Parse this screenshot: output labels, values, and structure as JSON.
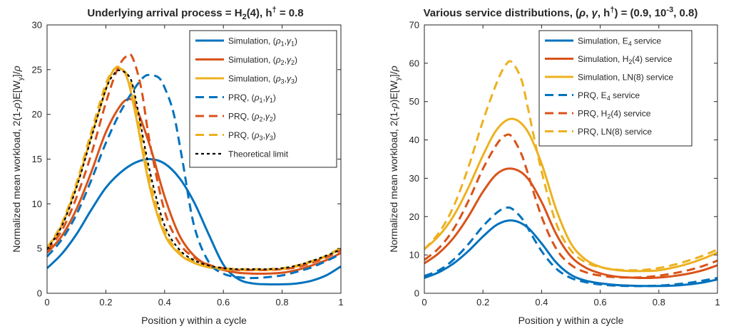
{
  "chart_data": [
    {
      "type": "line",
      "title": "Underlying arrival process = H2(4), h† = 0.8",
      "title_parts": {
        "a": "Underlying arrival process = H",
        "b": "2",
        "c": "(4), h",
        "d": "†",
        "e": " = 0.8"
      },
      "xlabel": "Position y within a cycle",
      "ylabel": "Normalized mean workload, 2(1-ρ)E[W_y]/ρ",
      "ylabel_parts": {
        "a": "Normalized mean workload, 2(1-",
        "b": "ρ",
        "c": ")E[W",
        "d": "y",
        "e": "]/",
        "f": "ρ"
      },
      "xlim": [
        0,
        1
      ],
      "ylim": [
        0,
        30
      ],
      "xticks": [
        0,
        0.2,
        0.4,
        0.6,
        0.8,
        1
      ],
      "xtick_labels": [
        "0",
        "0.2",
        "0.4",
        "0.6",
        "0.8",
        "1"
      ],
      "yticks": [
        0,
        5,
        10,
        15,
        20,
        25,
        30
      ],
      "ytick_labels": [
        "0",
        "5",
        "10",
        "15",
        "20",
        "25",
        "30"
      ],
      "grid": false,
      "legend_position": "top-right",
      "series": [
        {
          "name": "Simulation, (ρ1,γ1)",
          "legend": {
            "pre": "Simulation, (",
            "s1": "ρ",
            "b1": "1",
            "mid": ",",
            "s2": "γ",
            "b2": "1",
            "post": ")"
          },
          "style": "solid",
          "color": "#0072BD",
          "x": [
            0,
            0.05,
            0.1,
            0.15,
            0.2,
            0.25,
            0.3,
            0.35,
            0.4,
            0.45,
            0.5,
            0.55,
            0.6,
            0.65,
            0.7,
            0.75,
            0.8,
            0.85,
            0.9,
            0.95,
            1
          ],
          "y": [
            2.8,
            4.4,
            6.6,
            9.3,
            11.8,
            13.5,
            14.6,
            15.0,
            14.5,
            12.9,
            10.2,
            6.6,
            3.2,
            1.6,
            1.1,
            1.0,
            1.0,
            1.1,
            1.4,
            2.0,
            3.0
          ]
        },
        {
          "name": "Simulation, (ρ2,γ2)",
          "legend": {
            "pre": "Simulation, (",
            "s1": "ρ",
            "b1": "2",
            "mid": ",",
            "s2": "γ",
            "b2": "2",
            "post": ")"
          },
          "style": "solid",
          "color": "#D95319",
          "x": [
            0,
            0.05,
            0.1,
            0.15,
            0.2,
            0.25,
            0.28,
            0.3,
            0.35,
            0.4,
            0.45,
            0.5,
            0.55,
            0.6,
            0.65,
            0.7,
            0.75,
            0.8,
            0.85,
            0.9,
            0.95,
            1
          ],
          "y": [
            4.5,
            6.4,
            9.4,
            13.5,
            18.0,
            21.0,
            21.7,
            21.0,
            16.5,
            10.8,
            6.5,
            4.2,
            3.1,
            2.6,
            2.3,
            2.2,
            2.2,
            2.3,
            2.6,
            3.1,
            3.7,
            4.5
          ]
        },
        {
          "name": "Simulation, (ρ3,γ3)",
          "legend": {
            "pre": "Simulation, (",
            "s1": "ρ",
            "b1": "3",
            "mid": ",",
            "s2": "γ",
            "b2": "3",
            "post": ")"
          },
          "style": "solid",
          "color": "#EDB120",
          "x": [
            0,
            0.05,
            0.1,
            0.15,
            0.2,
            0.22,
            0.24,
            0.27,
            0.3,
            0.35,
            0.4,
            0.45,
            0.5,
            0.55,
            0.6,
            0.65,
            0.7,
            0.75,
            0.8,
            0.85,
            0.9,
            0.95,
            1
          ],
          "y": [
            5.0,
            7.6,
            12.0,
            17.5,
            22.8,
            24.6,
            25.2,
            24.3,
            20.2,
            11.8,
            6.6,
            4.4,
            3.4,
            2.9,
            2.7,
            2.6,
            2.6,
            2.6,
            2.7,
            3.0,
            3.5,
            4.1,
            5.0
          ]
        },
        {
          "name": "PRQ, (ρ1,γ1)",
          "legend": {
            "pre": "PRQ, (",
            "s1": "ρ",
            "b1": "1",
            "mid": ",",
            "s2": "γ",
            "b2": "1",
            "post": ")"
          },
          "style": "dashed",
          "color": "#0072BD",
          "x": [
            0,
            0.05,
            0.1,
            0.15,
            0.2,
            0.25,
            0.3,
            0.33,
            0.35,
            0.38,
            0.4,
            0.43,
            0.46,
            0.5,
            0.55,
            0.6,
            0.65,
            0.7,
            0.75,
            0.8,
            0.85,
            0.9,
            0.95,
            1
          ],
          "y": [
            4.1,
            6.0,
            8.8,
            12.6,
            16.8,
            20.3,
            23.0,
            24.2,
            24.4,
            24.1,
            23.0,
            20.2,
            15.0,
            7.6,
            3.5,
            2.2,
            1.8,
            1.7,
            1.8,
            2.0,
            2.4,
            2.9,
            3.6,
            4.4
          ]
        },
        {
          "name": "PRQ, (ρ2,γ2)",
          "legend": {
            "pre": "PRQ, (",
            "s1": "ρ",
            "b1": "2",
            "mid": ",",
            "s2": "γ",
            "b2": "2",
            "post": ")"
          },
          "style": "dashed",
          "color": "#D95319",
          "x": [
            0,
            0.05,
            0.1,
            0.15,
            0.2,
            0.24,
            0.27,
            0.29,
            0.32,
            0.35,
            0.4,
            0.45,
            0.5,
            0.55,
            0.6,
            0.65,
            0.7,
            0.75,
            0.8,
            0.85,
            0.9,
            0.95,
            1
          ],
          "y": [
            4.8,
            7.0,
            10.7,
            15.5,
            21.3,
            25.1,
            26.5,
            26.4,
            23.0,
            16.8,
            9.2,
            5.6,
            4.0,
            3.2,
            2.8,
            2.6,
            2.6,
            2.6,
            2.7,
            2.9,
            3.4,
            4.0,
            4.8
          ]
        },
        {
          "name": "PRQ, (ρ3,γ3)",
          "legend": {
            "pre": "PRQ, (",
            "s1": "ρ",
            "b1": "3",
            "mid": ",",
            "s2": "γ",
            "b2": "3",
            "post": ")"
          },
          "style": "dashed",
          "color": "#EDB120",
          "x": [
            0,
            0.05,
            0.1,
            0.15,
            0.2,
            0.23,
            0.25,
            0.28,
            0.3,
            0.35,
            0.4,
            0.45,
            0.5,
            0.55,
            0.6,
            0.65,
            0.7,
            0.75,
            0.8,
            0.85,
            0.9,
            0.95,
            1
          ],
          "y": [
            5.1,
            7.8,
            12.3,
            18.0,
            23.4,
            25.1,
            25.2,
            24.0,
            21.5,
            12.7,
            7.0,
            4.6,
            3.6,
            3.0,
            2.8,
            2.7,
            2.7,
            2.7,
            2.8,
            3.1,
            3.6,
            4.2,
            5.1
          ]
        },
        {
          "name": "Theoretical limit",
          "legend": {
            "pre": "Theoretical limit"
          },
          "style": "dotted",
          "color": "#000000",
          "x": [
            0,
            0.05,
            0.1,
            0.15,
            0.2,
            0.23,
            0.25,
            0.28,
            0.3,
            0.35,
            0.4,
            0.45,
            0.5,
            0.55,
            0.6,
            0.65,
            0.7,
            0.75,
            0.8,
            0.85,
            0.9,
            0.95,
            1
          ],
          "y": [
            4.9,
            7.5,
            11.8,
            17.3,
            22.8,
            24.6,
            24.9,
            24.2,
            22.0,
            13.6,
            7.6,
            4.9,
            3.7,
            3.1,
            2.8,
            2.7,
            2.7,
            2.7,
            2.8,
            3.1,
            3.6,
            4.2,
            4.9
          ]
        }
      ]
    },
    {
      "type": "line",
      "title": "Various service distributions, (ρ, γ, h†) = (0.9, 10^-3, 0.8)",
      "title_parts": {
        "a": "Various service distributions,  (",
        "b": "ρ",
        "c": ", ",
        "d": "γ",
        "e": ", h",
        "f": "†",
        "g": ") = (0.9, 10",
        "h": "-3",
        "i": ", 0.8)"
      },
      "xlabel": "Position y within a cycle",
      "ylabel": "Normalized mean workload, 2(1-ρ)E[W_y]/ρ",
      "ylabel_parts": {
        "a": "Normalized mean workload, 2(1-",
        "b": "ρ",
        "c": ")E[W",
        "d": "y",
        "e": "]/",
        "f": "ρ"
      },
      "xlim": [
        0,
        1
      ],
      "ylim": [
        0,
        70
      ],
      "xticks": [
        0,
        0.2,
        0.4,
        0.6,
        0.8,
        1
      ],
      "xtick_labels": [
        "0",
        "0.2",
        "0.4",
        "0.6",
        "0.8",
        "1"
      ],
      "yticks": [
        0,
        10,
        20,
        30,
        40,
        50,
        60,
        70
      ],
      "ytick_labels": [
        "0",
        "10",
        "20",
        "30",
        "40",
        "50",
        "60",
        "70"
      ],
      "grid": false,
      "legend_position": "top-right",
      "series": [
        {
          "name": "Simulation, E4 service",
          "legend": {
            "pre": "Simulation, E",
            "b1": "4",
            "post": " service"
          },
          "style": "solid",
          "color": "#0072BD",
          "x": [
            0,
            0.05,
            0.1,
            0.15,
            0.2,
            0.25,
            0.3,
            0.35,
            0.4,
            0.45,
            0.5,
            0.55,
            0.6,
            0.65,
            0.7,
            0.75,
            0.8,
            0.85,
            0.9,
            0.95,
            1
          ],
          "y": [
            4.0,
            5.5,
            7.8,
            11.0,
            14.8,
            18.0,
            19.0,
            17.3,
            13.0,
            8.0,
            4.8,
            3.3,
            2.6,
            2.2,
            2.0,
            1.9,
            1.9,
            2.0,
            2.3,
            2.8,
            3.6
          ]
        },
        {
          "name": "Simulation, H2(4) service",
          "legend": {
            "pre": "Simulation, H",
            "b1": "2",
            "post": "(4) service"
          },
          "style": "solid",
          "color": "#D95319",
          "x": [
            0,
            0.05,
            0.1,
            0.15,
            0.2,
            0.25,
            0.3,
            0.35,
            0.4,
            0.45,
            0.5,
            0.55,
            0.6,
            0.65,
            0.7,
            0.75,
            0.8,
            0.85,
            0.9,
            0.95,
            1
          ],
          "y": [
            7.8,
            10.5,
            14.5,
            20.0,
            26.5,
            31.3,
            32.5,
            30.2,
            23.8,
            15.4,
            9.6,
            6.7,
            5.2,
            4.4,
            4.1,
            4.0,
            4.1,
            4.5,
            5.1,
            6.0,
            7.3
          ]
        },
        {
          "name": "Simulation, LN(8) service",
          "legend": {
            "pre": "Simulation, LN(8) service"
          },
          "style": "solid",
          "color": "#EDB120",
          "x": [
            0,
            0.05,
            0.1,
            0.15,
            0.2,
            0.25,
            0.3,
            0.35,
            0.4,
            0.45,
            0.5,
            0.55,
            0.6,
            0.65,
            0.7,
            0.75,
            0.8,
            0.85,
            0.9,
            0.95,
            1
          ],
          "y": [
            11.5,
            15.0,
            20.2,
            27.5,
            36.0,
            43.0,
            45.5,
            42.5,
            33.8,
            21.8,
            13.0,
            8.8,
            6.9,
            6.1,
            5.8,
            5.8,
            6.0,
            6.7,
            7.7,
            9.0,
            10.6
          ]
        },
        {
          "name": "PRQ, E4 service",
          "legend": {
            "pre": "PRQ, E",
            "b1": "4",
            "post": " service"
          },
          "style": "dashed",
          "color": "#0072BD",
          "x": [
            0,
            0.05,
            0.1,
            0.15,
            0.2,
            0.25,
            0.28,
            0.3,
            0.33,
            0.35,
            0.4,
            0.45,
            0.5,
            0.55,
            0.6,
            0.65,
            0.7,
            0.75,
            0.8,
            0.85,
            0.9,
            0.95,
            1
          ],
          "y": [
            4.5,
            6.0,
            8.8,
            12.8,
            17.5,
            21.2,
            22.3,
            22.0,
            19.8,
            17.4,
            11.0,
            6.4,
            4.0,
            2.9,
            2.3,
            2.0,
            1.9,
            1.9,
            2.0,
            2.3,
            2.7,
            3.3,
            4.0
          ]
        },
        {
          "name": "PRQ, H2(4) service",
          "legend": {
            "pre": "PRQ, H",
            "b1": "2",
            "post": "(4) service"
          },
          "style": "dashed",
          "color": "#D95319",
          "x": [
            0,
            0.05,
            0.1,
            0.15,
            0.2,
            0.25,
            0.28,
            0.3,
            0.33,
            0.35,
            0.4,
            0.45,
            0.5,
            0.55,
            0.6,
            0.65,
            0.7,
            0.75,
            0.8,
            0.85,
            0.9,
            0.95,
            1
          ],
          "y": [
            8.7,
            11.8,
            16.8,
            24.0,
            32.5,
            39.2,
            41.3,
            40.7,
            36.5,
            32.0,
            20.0,
            11.6,
            7.4,
            5.5,
            4.6,
            4.2,
            4.1,
            4.2,
            4.6,
            5.2,
            6.0,
            7.1,
            8.5
          ]
        },
        {
          "name": "PRQ, LN(8) service",
          "legend": {
            "pre": "PRQ, LN(8) service"
          },
          "style": "dashed",
          "color": "#EDB120",
          "x": [
            0,
            0.05,
            0.1,
            0.15,
            0.2,
            0.25,
            0.28,
            0.3,
            0.33,
            0.35,
            0.4,
            0.45,
            0.5,
            0.55,
            0.6,
            0.65,
            0.7,
            0.75,
            0.8,
            0.85,
            0.9,
            0.95,
            1
          ],
          "y": [
            11.5,
            15.8,
            22.7,
            32.8,
            45.0,
            55.5,
            59.8,
            60.2,
            56.0,
            49.5,
            31.8,
            18.2,
            11.2,
            8.1,
            6.8,
            6.2,
            6.0,
            6.1,
            6.6,
            7.4,
            8.5,
            9.8,
            11.4
          ]
        }
      ]
    }
  ]
}
